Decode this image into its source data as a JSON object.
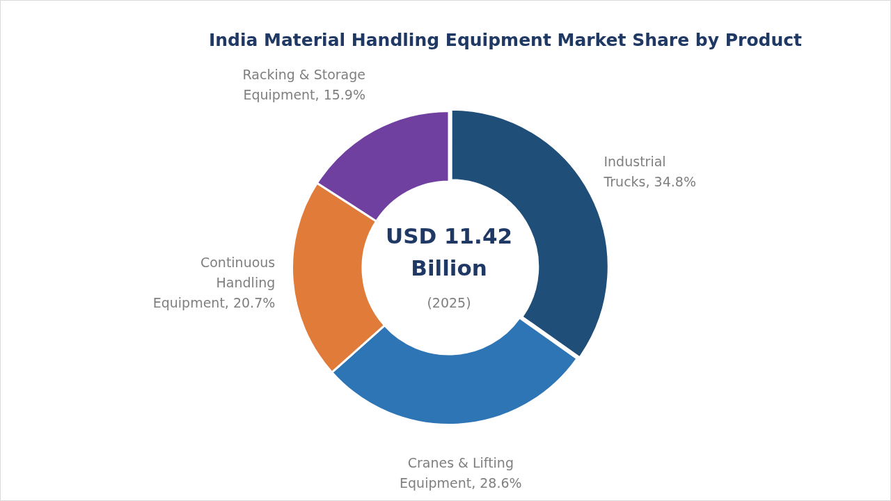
{
  "chart_data": {
    "type": "donut",
    "title": "India Material Handling Equipment Market Share by Product",
    "categories": [
      "Industrial Trucks",
      "Cranes & Lifting Equipment",
      "Continuous Handling Equipment",
      "Racking & Storage Equipment"
    ],
    "values": [
      34.8,
      28.6,
      20.7,
      15.9
    ],
    "value_labels": [
      "34.8%",
      "28.6%",
      "20.7%",
      "15.9%"
    ],
    "colors": [
      "#1f4e79",
      "#2e75b6",
      "#e07b39",
      "#7040a0"
    ],
    "legend": false,
    "annotations": [
      "USD 11.42 Billion",
      "(2025)"
    ]
  }
}
